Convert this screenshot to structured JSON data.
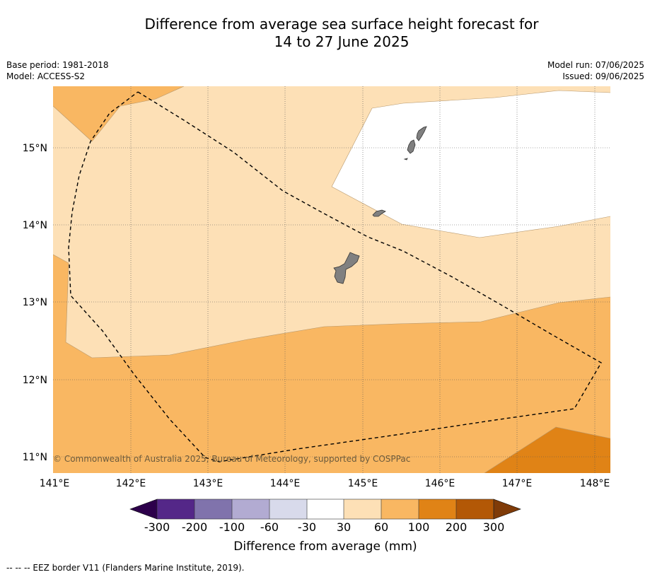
{
  "title": {
    "line1": "Difference from average sea surface height forecast for",
    "line2": "14 to 27 June 2025"
  },
  "meta": {
    "base_period": "Base period: 1981-2018",
    "model": "Model: ACCESS-S2",
    "model_run": "Model run: 07/06/2025",
    "issued": "Issued: 09/06/2025"
  },
  "map": {
    "lon_labels": [
      "141°E",
      "142°E",
      "143°E",
      "144°E",
      "145°E",
      "146°E",
      "147°E",
      "148°E"
    ],
    "lat_labels": [
      "15°N",
      "14°N",
      "13°N",
      "12°N",
      "11°N"
    ],
    "copyright": "© Commonwealth of Australia 2025, Bureau of Meteorology, supported by COSPPac",
    "colors": {
      "land": "#808080",
      "band_30_60": "#fde0b6",
      "band_60_100": "#f9b762",
      "band_100_200": "#e08316"
    }
  },
  "colorbar": {
    "title": "Difference from average (mm)",
    "labels": [
      "-300",
      "-200",
      "-100",
      "-60",
      "-30",
      "30",
      "60",
      "100",
      "200",
      "300"
    ],
    "colors": [
      "#542788",
      "#8073ac",
      "#b2abd2",
      "#d8daeb",
      "#ffffff",
      "#fde0b6",
      "#f9b762",
      "#e08316",
      "#b35806"
    ],
    "under_color": "#2d004b",
    "over_color": "#7f3b08"
  },
  "footer": "--  --  -- EEZ border V11 (Flanders Marine Institute, 2019)."
}
